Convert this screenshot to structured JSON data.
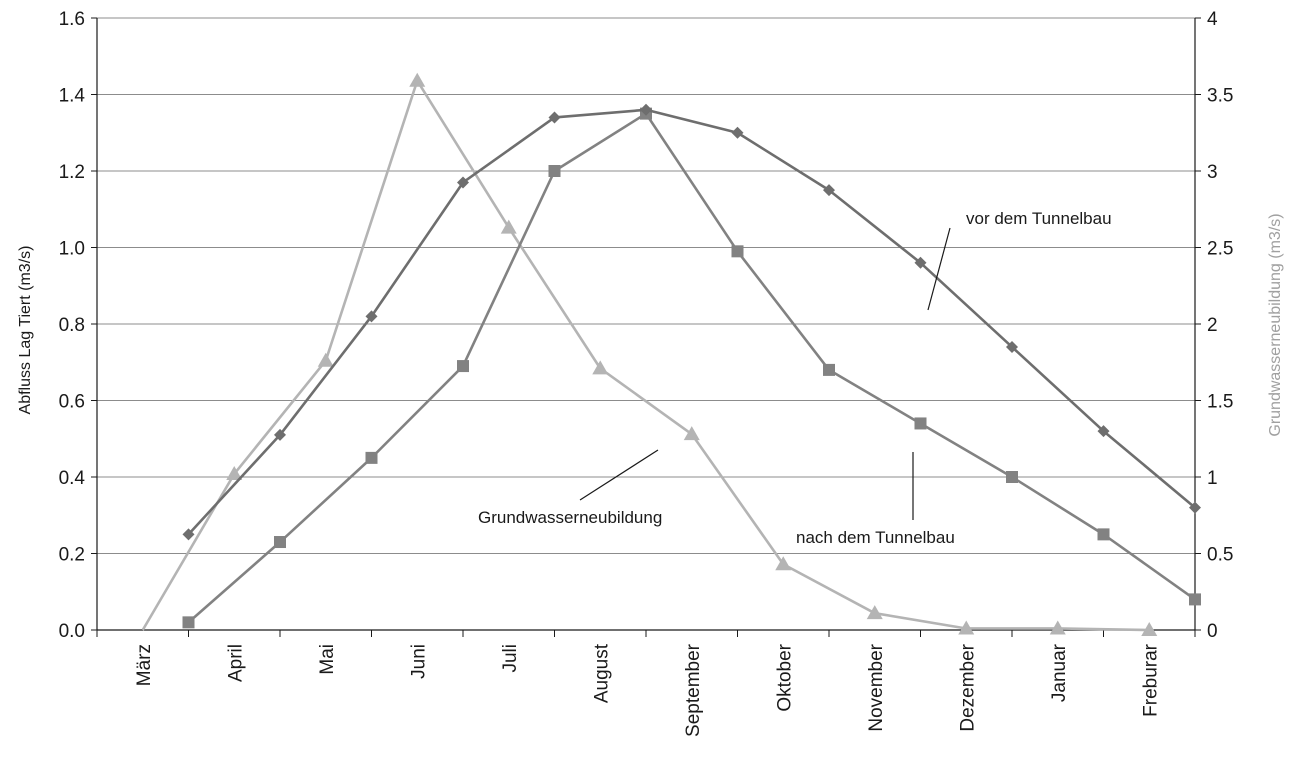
{
  "chart_data": {
    "type": "line",
    "categories": [
      "März",
      "April",
      "Mai",
      "Juni",
      "Juli",
      "August",
      "September",
      "Oktober",
      "November",
      "Dezember",
      "Januar",
      "Freburar"
    ],
    "ylabel": "Abfluss Lag Tiert (m3/s)",
    "ylabel_right": "Grundwasserneubildung (m3/s)",
    "ylim": [
      0,
      1.6
    ],
    "ylim_right": [
      0,
      4
    ],
    "yticks": [
      "0.0",
      "0.2",
      "0.4",
      "0.6",
      "0.8",
      "1.0",
      "1.2",
      "1.4",
      "1.6"
    ],
    "yticks_right": [
      "0",
      "0.5",
      "1",
      "1.5",
      "2",
      "2.5",
      "3",
      "3.5",
      "4"
    ],
    "grid": true,
    "series": [
      {
        "name": "vor dem Tunnelbau",
        "axis": "left",
        "marker": "diamond",
        "color": "#6e6e6e",
        "x": [
          1,
          2,
          3,
          4,
          5,
          6,
          7,
          8,
          9,
          10,
          11,
          12
        ],
        "values": [
          0.25,
          0.51,
          0.82,
          1.17,
          1.34,
          1.36,
          1.3,
          1.15,
          0.96,
          0.74,
          0.52,
          0.32
        ]
      },
      {
        "name": "nach dem Tunnelbau",
        "axis": "left",
        "marker": "square",
        "color": "#828282",
        "x": [
          1,
          2,
          3,
          4,
          5,
          6,
          7,
          8,
          9,
          10,
          11,
          12
        ],
        "values": [
          0.02,
          0.23,
          0.45,
          0.69,
          1.2,
          1.35,
          0.99,
          0.68,
          0.54,
          0.4,
          0.25,
          0.08
        ]
      },
      {
        "name": "Grundwasserneubildung",
        "axis": "right",
        "marker": "triangle",
        "color": "#b4b4b4",
        "x": [
          0.5,
          1.5,
          2.5,
          3.5,
          4.5,
          5.5,
          6.5,
          7.5,
          8.5,
          9.5,
          10.5,
          11.5
        ],
        "values": [
          0.0,
          1.02,
          1.76,
          3.59,
          2.63,
          1.71,
          1.28,
          0.43,
          0.11,
          0.01,
          0.01,
          0.0
        ],
        "marker_from_index": 1
      }
    ],
    "annotations": [
      {
        "text": "vor dem Tunnelbau",
        "series": "vor dem Tunnelbau"
      },
      {
        "text": "nach dem Tunnelbau",
        "series": "nach dem Tunnelbau"
      },
      {
        "text": "Grundwasserneubildung",
        "series": "Grundwasserneubildung"
      }
    ]
  }
}
